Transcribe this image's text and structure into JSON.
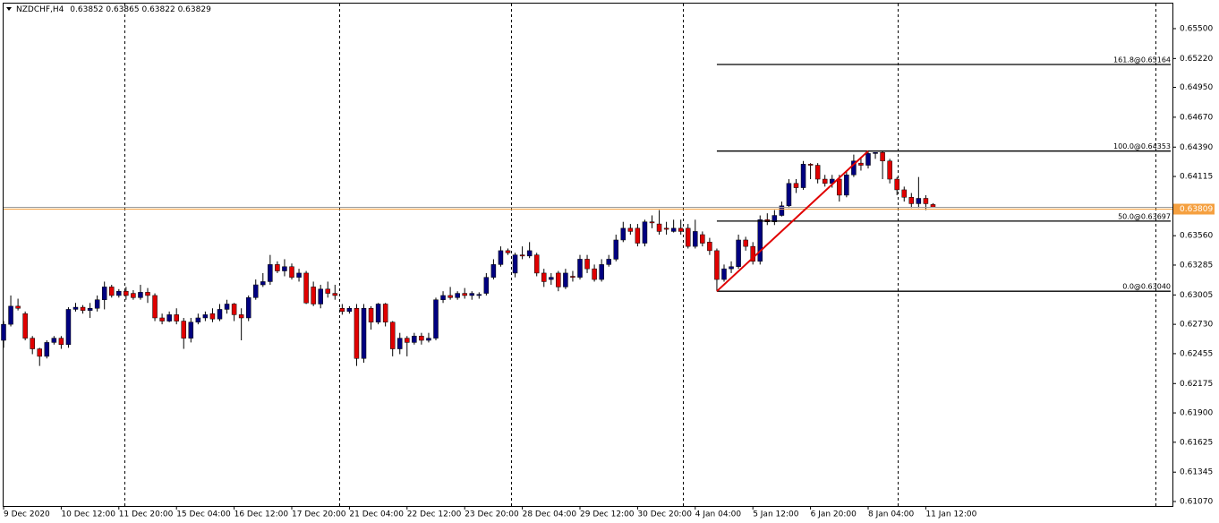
{
  "chart_data": {
    "type": "candlestick",
    "title": "NZDCHF,H4",
    "categories": [
      "9 Dec 2020",
      null,
      null,
      null,
      null,
      null,
      null,
      null,
      "10 Dec 12:00",
      null,
      null,
      null,
      null,
      null,
      null,
      null,
      "11 Dec 20:00",
      null,
      null,
      null,
      null,
      null,
      null,
      null,
      "15 Dec 04:00",
      null,
      null,
      null,
      null,
      null,
      null,
      null,
      "16 Dec 12:00",
      null,
      null,
      null,
      null,
      null,
      null,
      null,
      "17 Dec 20:00",
      null,
      null,
      null,
      null,
      null,
      null,
      null,
      "21 Dec 04:00",
      null,
      null,
      null,
      null,
      null,
      null,
      null,
      "22 Dec 12:00",
      null,
      null,
      null,
      null,
      null,
      null,
      null,
      "23 Dec 20:00",
      null,
      null,
      null,
      null,
      null,
      null,
      null,
      "28 Dec 04:00",
      null,
      null,
      null,
      null,
      null,
      null,
      null,
      "29 Dec 12:00",
      null,
      null,
      null,
      null,
      null,
      null,
      null,
      "30 Dec 20:00",
      null,
      null,
      null,
      null,
      null,
      null,
      null,
      "4 Jan 04:00",
      null,
      null,
      null,
      null,
      null,
      null,
      null,
      "5 Jan 12:00",
      null,
      null,
      null,
      null,
      null,
      null,
      null,
      "6 Jan 20:00",
      null,
      null,
      null,
      null,
      null,
      null,
      null,
      "8 Jan 04:00",
      null,
      null,
      null,
      null,
      null,
      null,
      null,
      "11 Jan 12:00",
      null
    ],
    "open": [
      0.6258,
      0.6273,
      0.629,
      0.6283,
      0.626,
      0.625,
      0.6243,
      0.6256,
      0.626,
      0.6254,
      0.6287,
      0.6289,
      0.6286,
      0.6288,
      0.6296,
      0.6308,
      0.63,
      0.6304,
      0.6302,
      0.6298,
      0.6303,
      0.63,
      0.6279,
      0.6276,
      0.6282,
      0.6276,
      0.626,
      0.6275,
      0.6279,
      0.6283,
      0.6278,
      0.6287,
      0.6292,
      0.6282,
      0.6279,
      0.6298,
      0.631,
      0.6313,
      0.6329,
      0.6323,
      0.6327,
      0.6317,
      0.6321,
      0.6308,
      0.6292,
      0.6306,
      0.6302,
      0.6288,
      0.6285,
      0.6288,
      0.6241,
      0.6288,
      0.6275,
      0.6292,
      0.6275,
      0.625,
      0.626,
      0.6256,
      0.6262,
      0.6258,
      0.626,
      0.6296,
      0.63,
      0.6298,
      0.6302,
      0.63,
      0.63,
      0.6302,
      0.6317,
      0.6329,
      0.6342,
      0.6321,
      0.6338,
      0.6337,
      0.6338,
      0.6321,
      0.6315,
      0.6321,
      0.6308,
      0.6318,
      0.6317,
      0.6334,
      0.6325,
      0.6315,
      0.6329,
      0.6334,
      0.6352,
      0.6363,
      0.6363,
      0.6349,
      0.6369,
      0.6367,
      0.6363,
      0.636,
      0.6363,
      0.6363,
      0.6346,
      0.6357,
      0.635,
      0.6342,
      0.6315,
      0.6325,
      0.6327,
      0.6352,
      0.6346,
      0.6332,
      0.6371,
      0.6369,
      0.6375,
      0.6384,
      0.6405,
      0.6401,
      0.6423,
      0.6422,
      0.6409,
      0.6405,
      0.6409,
      0.6394,
      0.6413,
      0.6424,
      0.6422,
      0.6433,
      0.6434,
      0.6426,
      0.6409,
      0.6399,
      0.6392,
      0.6386,
      0.6391,
      0.63852
    ],
    "high": [
      0.6276,
      0.63,
      0.6297,
      0.6285,
      0.6262,
      0.6251,
      0.6258,
      0.6262,
      0.6262,
      0.6289,
      0.6293,
      0.6291,
      0.6293,
      0.63,
      0.6313,
      0.631,
      0.6306,
      0.6308,
      0.6305,
      0.631,
      0.6307,
      0.6302,
      0.6283,
      0.6285,
      0.6288,
      0.6279,
      0.6279,
      0.6283,
      0.6285,
      0.6288,
      0.6292,
      0.6296,
      0.6293,
      0.6288,
      0.63,
      0.6315,
      0.6321,
      0.6338,
      0.6332,
      0.6334,
      0.633,
      0.6325,
      0.6323,
      0.6313,
      0.631,
      0.6313,
      0.631,
      0.6292,
      0.629,
      0.6292,
      0.6292,
      0.629,
      0.6293,
      0.6293,
      0.6276,
      0.6265,
      0.6262,
      0.6265,
      0.6265,
      0.6265,
      0.6298,
      0.6304,
      0.6308,
      0.6304,
      0.6307,
      0.6304,
      0.6303,
      0.6321,
      0.6334,
      0.6346,
      0.6344,
      0.634,
      0.6346,
      0.635,
      0.634,
      0.6325,
      0.6321,
      0.6323,
      0.6325,
      0.6323,
      0.6338,
      0.6338,
      0.6329,
      0.6334,
      0.6338,
      0.6357,
      0.6369,
      0.6367,
      0.6367,
      0.6371,
      0.6375,
      0.638,
      0.6369,
      0.6371,
      0.6371,
      0.6367,
      0.6371,
      0.636,
      0.6354,
      0.6344,
      0.6329,
      0.6332,
      0.6357,
      0.6355,
      0.635,
      0.6375,
      0.6377,
      0.638,
      0.6388,
      0.6409,
      0.6409,
      0.6426,
      0.6424,
      0.6424,
      0.6413,
      0.6413,
      0.6413,
      0.6417,
      0.6432,
      0.643,
      0.64353,
      0.6434,
      0.6435,
      0.6428,
      0.6411,
      0.6402,
      0.6396,
      0.6411,
      0.6394,
      0.63865
    ],
    "low": [
      0.6251,
      0.6271,
      0.6286,
      0.6258,
      0.6245,
      0.6234,
      0.6241,
      0.6254,
      0.625,
      0.6251,
      0.6285,
      0.6283,
      0.6279,
      0.6285,
      0.6287,
      0.6298,
      0.6298,
      0.6296,
      0.6296,
      0.6296,
      0.6293,
      0.6276,
      0.6273,
      0.6275,
      0.6273,
      0.625,
      0.6256,
      0.6273,
      0.6276,
      0.6275,
      0.6276,
      0.6283,
      0.6276,
      0.6258,
      0.6276,
      0.6296,
      0.6308,
      0.631,
      0.6321,
      0.6318,
      0.6315,
      0.6313,
      0.6292,
      0.629,
      0.6288,
      0.6298,
      0.6296,
      0.6282,
      0.6283,
      0.6234,
      0.6237,
      0.6268,
      0.6273,
      0.6271,
      0.6243,
      0.6245,
      0.6243,
      0.6254,
      0.6254,
      0.6256,
      0.6258,
      0.6293,
      0.6296,
      0.6296,
      0.6297,
      0.6296,
      0.6297,
      0.63,
      0.6315,
      0.6327,
      0.6338,
      0.6317,
      0.6334,
      0.6335,
      0.6318,
      0.6308,
      0.631,
      0.6304,
      0.6306,
      0.6313,
      0.6315,
      0.6321,
      0.6313,
      0.6313,
      0.6327,
      0.6332,
      0.635,
      0.6357,
      0.6346,
      0.6346,
      0.6363,
      0.6357,
      0.6357,
      0.6359,
      0.6357,
      0.6344,
      0.6344,
      0.6346,
      0.6338,
      0.6304,
      0.6313,
      0.6321,
      0.6325,
      0.6342,
      0.6329,
      0.6329,
      0.6366,
      0.6366,
      0.6374,
      0.6382,
      0.6396,
      0.6399,
      0.6409,
      0.6405,
      0.6402,
      0.6401,
      0.6388,
      0.6392,
      0.6411,
      0.6417,
      0.6419,
      0.6428,
      0.6409,
      0.6405,
      0.6394,
      0.6388,
      0.6382,
      0.6382,
      0.638,
      0.63822
    ],
    "close": [
      0.6273,
      0.629,
      0.6288,
      0.626,
      0.625,
      0.6243,
      0.6256,
      0.626,
      0.6254,
      0.6287,
      0.6289,
      0.6286,
      0.6288,
      0.6296,
      0.6308,
      0.63,
      0.6304,
      0.63,
      0.6298,
      0.6303,
      0.63,
      0.6279,
      0.6276,
      0.6282,
      0.6276,
      0.626,
      0.6275,
      0.6279,
      0.6282,
      0.6278,
      0.6287,
      0.6292,
      0.6282,
      0.6279,
      0.6298,
      0.631,
      0.6313,
      0.6329,
      0.6323,
      0.6327,
      0.6317,
      0.6321,
      0.6293,
      0.6292,
      0.6306,
      0.6302,
      0.63,
      0.6285,
      0.6288,
      0.6241,
      0.6288,
      0.6275,
      0.6292,
      0.6275,
      0.625,
      0.626,
      0.6256,
      0.6262,
      0.6258,
      0.626,
      0.6296,
      0.63,
      0.6298,
      0.6302,
      0.63,
      0.6302,
      0.6301,
      0.6317,
      0.6329,
      0.6342,
      0.634,
      0.6338,
      0.6337,
      0.6342,
      0.6321,
      0.6313,
      0.6317,
      0.6308,
      0.6321,
      0.6317,
      0.6334,
      0.6325,
      0.6315,
      0.6329,
      0.6334,
      0.6352,
      0.6363,
      0.636,
      0.6349,
      0.6369,
      0.6368,
      0.636,
      0.6362,
      0.6363,
      0.636,
      0.6346,
      0.636,
      0.6349,
      0.6342,
      0.6315,
      0.6325,
      0.6327,
      0.6352,
      0.6346,
      0.6332,
      0.6371,
      0.6369,
      0.6375,
      0.6384,
      0.6405,
      0.6401,
      0.6423,
      0.6422,
      0.6409,
      0.6405,
      0.6409,
      0.6394,
      0.6413,
      0.6426,
      0.6422,
      0.6433,
      0.6434,
      0.6426,
      0.6409,
      0.6399,
      0.6392,
      0.6386,
      0.6391,
      0.6386,
      0.63829
    ],
    "up_color": "#000080",
    "down_color": "#e00000",
    "wick_color": "#000000",
    "ylim": [
      0.61028,
      0.65743
    ],
    "yticks": [
      {
        "value": 0.655,
        "label": "0.65500"
      },
      {
        "value": 0.6522,
        "label": "0.65220"
      },
      {
        "value": 0.6495,
        "label": "0.64950"
      },
      {
        "value": 0.6467,
        "label": "0.64670"
      },
      {
        "value": 0.6439,
        "label": "0.64390"
      },
      {
        "value": 0.64115,
        "label": "0.64115"
      },
      {
        "value": 0.6356,
        "label": "0.63560"
      },
      {
        "value": 0.63285,
        "label": "0.63285"
      },
      {
        "value": 0.63005,
        "label": "0.63005"
      },
      {
        "value": 0.6273,
        "label": "0.62730"
      },
      {
        "value": 0.62455,
        "label": "0.62455"
      },
      {
        "value": 0.62175,
        "label": "0.62175"
      },
      {
        "value": 0.619,
        "label": "0.61900"
      },
      {
        "value": 0.61625,
        "label": "0.61625"
      },
      {
        "value": 0.61345,
        "label": "0.61345"
      },
      {
        "value": 0.6107,
        "label": "0.61070"
      }
    ],
    "fib_levels": [
      {
        "value": 0.65164,
        "label": "161.8@0.65164"
      },
      {
        "value": 0.64353,
        "label": "100.0@0.64353"
      },
      {
        "value": 0.63697,
        "label": "50.0@0.63697"
      },
      {
        "value": 0.6304,
        "label": "0.0@0.63040"
      }
    ],
    "fib_color": "#000000",
    "trend_color": "#e00000",
    "bid": {
      "value": 0.63809,
      "label": "0.63809"
    },
    "bid_color": "#f5a040",
    "grid": false
  }
}
